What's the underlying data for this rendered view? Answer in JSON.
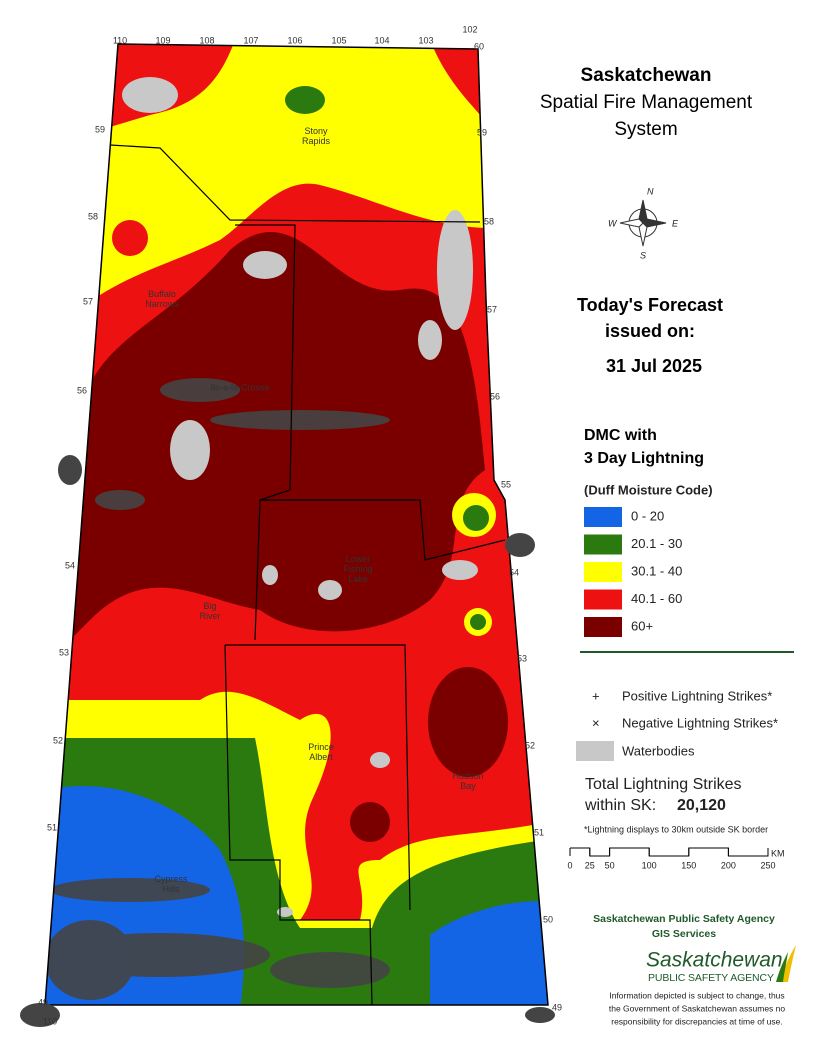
{
  "header": {
    "lines": [
      "Saskatchewan",
      "Spatial Fire Management",
      "System"
    ]
  },
  "forecast": {
    "lines": [
      "Today's Forecast",
      "issued on:"
    ],
    "date": "31 Jul 2025"
  },
  "compass": {
    "labels": [
      "N",
      "W",
      "E",
      "S"
    ]
  },
  "legend": {
    "title": [
      "DMC with",
      "3 Day Lightning"
    ],
    "subtitle": "(Duff Moisture Code)",
    "classes": [
      {
        "label": "0 - 20",
        "color": "#1464e6"
      },
      {
        "label": "20.1 - 30",
        "color": "#2a7a10"
      },
      {
        "label": "30.1 - 40",
        "color": "#ffff00"
      },
      {
        "label": "40.1 - 60",
        "color": "#ee1111"
      },
      {
        "label": "60+",
        "color": "#7a0000"
      }
    ]
  },
  "symbols": [
    {
      "icon": "+",
      "label": "Positive Lightning Strikes*"
    },
    {
      "icon": "×",
      "label": "Negative Lightning Strikes*"
    },
    {
      "label": "Waterbodies"
    }
  ],
  "total": {
    "lines": [
      "Total Lightning Strikes",
      "within SK:"
    ],
    "value": "20,120"
  },
  "note": "*Lightning displays to 30km outside SK border",
  "scale": {
    "labels": [
      0,
      25,
      50,
      100,
      150,
      200,
      250
    ],
    "unit": "KM"
  },
  "agency": {
    "lines": [
      "Saskatchewan Public Safety Agency",
      "GIS  Services"
    ],
    "logo": [
      "Saskatchewan",
      "PUBLIC SAFETY AGENCY"
    ],
    "disclaimer": [
      "Information depicted is subject to change, thus",
      "the Government of Saskatchewan assumes no",
      "responsibility for discrepancies at time of use."
    ]
  },
  "map": {
    "longitudes_top": [
      110,
      109,
      108,
      107,
      106,
      105,
      104,
      103,
      102
    ],
    "top_right_lat": 60,
    "latitudes_left": [
      59,
      58,
      57,
      56,
      54,
      53,
      52,
      51,
      49
    ],
    "latitudes_right": [
      59,
      58,
      57,
      56,
      55,
      54,
      53,
      52,
      51,
      50,
      49
    ],
    "longitude_bottom": 110,
    "places": [
      "Stony Rapids",
      "Buffalo Narrows",
      "Ile-a-la-Crosse",
      "Lower Fishing Lake",
      "Big River",
      "Prince Albert",
      "Hudson Bay",
      "Cypress Hills"
    ]
  }
}
